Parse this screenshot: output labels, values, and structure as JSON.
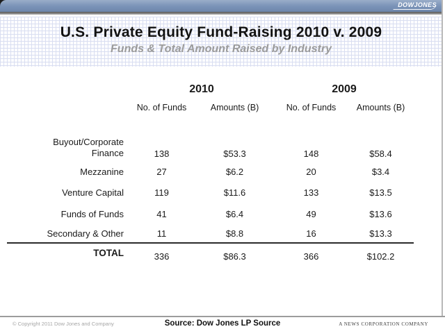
{
  "brand": {
    "logo": "DOWJONES"
  },
  "header": {
    "title": "U.S. Private Equity Fund-Raising 2010 v. 2009",
    "subtitle": "Funds & Total Amount Raised by Industry"
  },
  "table": {
    "year_groups": [
      {
        "label": "2010"
      },
      {
        "label": "2009"
      }
    ],
    "column_headers": [
      "No. of Funds",
      "Amounts (B)",
      "No. of Funds",
      "Amounts (B)"
    ],
    "rows": [
      {
        "label": "Buyout/Corporate Finance",
        "label_lines": [
          "Buyout/Corporate",
          "Finance"
        ],
        "values": [
          "138",
          "$53.3",
          "148",
          "$58.4"
        ]
      },
      {
        "label": "Mezzanine",
        "values": [
          "27",
          "$6.2",
          "20",
          "$3.4"
        ]
      },
      {
        "label": "Venture Capital",
        "values": [
          "119",
          "$11.6",
          "133",
          "$13.5"
        ]
      },
      {
        "label": "Funds of Funds",
        "values": [
          "41",
          "$6.4",
          "49",
          "$13.6"
        ]
      },
      {
        "label": "Secondary & Other",
        "values": [
          "11",
          "$8.8",
          "16",
          "$13.3"
        ]
      }
    ],
    "total_row": {
      "label": "TOTAL",
      "values": [
        "336",
        "$86.3",
        "366",
        "$102.2"
      ]
    }
  },
  "footer": {
    "copyright": "© Copyright 2011 Dow Jones and Company",
    "source": "Source: Dow Jones LP Source",
    "company": "A NEWS CORPORATION COMPANY"
  },
  "colors": {
    "topbar_blue": "#7e96ba",
    "grid_line": "#d9def1",
    "subtitle_gray": "#9b9b9b",
    "rule_dark": "#2a2a2a",
    "footer_line": "#9c9c9c"
  }
}
